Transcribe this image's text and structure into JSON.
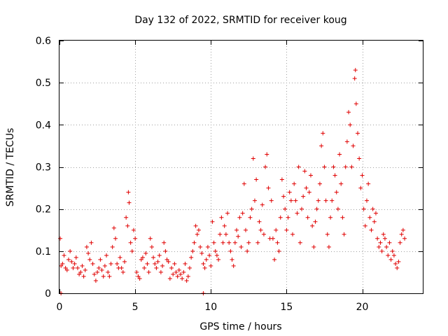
{
  "chart_data": {
    "type": "scatter",
    "title": "Day 132 of 2022, SRMTID for receiver koug",
    "xlabel": "GPS time / hours",
    "ylabel": "SRMTID / TECUs",
    "xlim": [
      0,
      24
    ],
    "ylim": [
      0,
      0.6
    ],
    "xticks": [
      0,
      5,
      10,
      15,
      20
    ],
    "yticks": [
      0,
      0.1,
      0.2,
      0.3,
      0.4,
      0.5,
      0.6
    ],
    "xtick_labels": [
      "0",
      "5",
      "10",
      "15",
      "20"
    ],
    "ytick_labels": [
      "0",
      "0.1",
      "0.2",
      "0.3",
      "0.4",
      "0.5",
      "0.6"
    ],
    "grid": true,
    "marker": "+",
    "color": "#e00000",
    "series": [
      {
        "name": "SRMTID",
        "points": [
          [
            0.05,
            0.13
          ],
          [
            0.1,
            0.065
          ],
          [
            0.2,
            0.07
          ],
          [
            0.3,
            0.09
          ],
          [
            0.4,
            0.06
          ],
          [
            0.5,
            0.055
          ],
          [
            0.6,
            0.08
          ],
          [
            0.7,
            0.1
          ],
          [
            0.8,
            0.075
          ],
          [
            0.9,
            0.06
          ],
          [
            1.0,
            0.07
          ],
          [
            1.1,
            0.085
          ],
          [
            1.2,
            0.06
          ],
          [
            1.3,
            0.045
          ],
          [
            1.4,
            0.05
          ],
          [
            1.5,
            0.065
          ],
          [
            1.6,
            0.04
          ],
          [
            1.7,
            0.055
          ],
          [
            1.8,
            0.11
          ],
          [
            1.9,
            0.095
          ],
          [
            2.0,
            0.08
          ],
          [
            2.1,
            0.12
          ],
          [
            2.2,
            0.07
          ],
          [
            2.3,
            0.045
          ],
          [
            2.4,
            0.03
          ],
          [
            2.5,
            0.05
          ],
          [
            2.6,
            0.06
          ],
          [
            2.7,
            0.08
          ],
          [
            2.8,
            0.055
          ],
          [
            2.9,
            0.04
          ],
          [
            3.0,
            0.065
          ],
          [
            3.1,
            0.09
          ],
          [
            3.2,
            0.05
          ],
          [
            3.3,
            0.04
          ],
          [
            3.4,
            0.07
          ],
          [
            3.5,
            0.11
          ],
          [
            3.6,
            0.155
          ],
          [
            3.7,
            0.13
          ],
          [
            3.8,
            0.07
          ],
          [
            3.9,
            0.06
          ],
          [
            4.0,
            0.085
          ],
          [
            4.1,
            0.06
          ],
          [
            4.2,
            0.05
          ],
          [
            4.3,
            0.075
          ],
          [
            4.4,
            0.18
          ],
          [
            4.5,
            0.16
          ],
          [
            4.55,
            0.24
          ],
          [
            4.6,
            0.215
          ],
          [
            4.7,
            0.12
          ],
          [
            4.8,
            0.1
          ],
          [
            4.9,
            0.15
          ],
          [
            5.0,
            0.13
          ],
          [
            5.1,
            0.05
          ],
          [
            5.2,
            0.04
          ],
          [
            5.3,
            0.035
          ],
          [
            5.4,
            0.08
          ],
          [
            5.5,
            0.085
          ],
          [
            5.6,
            0.06
          ],
          [
            5.7,
            0.095
          ],
          [
            5.8,
            0.07
          ],
          [
            5.9,
            0.05
          ],
          [
            6.0,
            0.13
          ],
          [
            6.1,
            0.11
          ],
          [
            6.2,
            0.085
          ],
          [
            6.3,
            0.07
          ],
          [
            6.4,
            0.06
          ],
          [
            6.5,
            0.075
          ],
          [
            6.6,
            0.09
          ],
          [
            6.7,
            0.05
          ],
          [
            6.8,
            0.065
          ],
          [
            6.9,
            0.12
          ],
          [
            7.0,
            0.1
          ],
          [
            7.1,
            0.08
          ],
          [
            7.2,
            0.075
          ],
          [
            7.3,
            0.035
          ],
          [
            7.4,
            0.06
          ],
          [
            7.5,
            0.045
          ],
          [
            7.6,
            0.07
          ],
          [
            7.7,
            0.05
          ],
          [
            7.8,
            0.04
          ],
          [
            7.9,
            0.055
          ],
          [
            8.0,
            0.045
          ],
          [
            8.1,
            0.035
          ],
          [
            8.2,
            0.05
          ],
          [
            8.3,
            0.07
          ],
          [
            8.4,
            0.03
          ],
          [
            8.5,
            0.04
          ],
          [
            8.6,
            0.06
          ],
          [
            8.7,
            0.085
          ],
          [
            8.8,
            0.1
          ],
          [
            8.9,
            0.12
          ],
          [
            9.0,
            0.16
          ],
          [
            9.1,
            0.14
          ],
          [
            9.2,
            0.15
          ],
          [
            9.3,
            0.11
          ],
          [
            9.4,
            0.095
          ],
          [
            9.5,
            0.07
          ],
          [
            9.6,
            0.06
          ],
          [
            9.7,
            0.08
          ],
          [
            9.8,
            0.11
          ],
          [
            9.9,
            0.09
          ],
          [
            10.0,
            0.065
          ],
          [
            10.1,
            0.17
          ],
          [
            10.2,
            0.12
          ],
          [
            10.3,
            0.1
          ],
          [
            10.4,
            0.09
          ],
          [
            10.5,
            0.08
          ],
          [
            10.6,
            0.14
          ],
          [
            10.7,
            0.18
          ],
          [
            10.8,
            0.12
          ],
          [
            10.9,
            0.16
          ],
          [
            11.0,
            0.14
          ],
          [
            11.1,
            0.19
          ],
          [
            11.2,
            0.12
          ],
          [
            11.3,
            0.1
          ],
          [
            11.4,
            0.08
          ],
          [
            11.5,
            0.065
          ],
          [
            11.6,
            0.12
          ],
          [
            11.7,
            0.15
          ],
          [
            11.8,
            0.135
          ],
          [
            11.9,
            0.18
          ],
          [
            12.0,
            0.11
          ],
          [
            12.1,
            0.19
          ],
          [
            12.2,
            0.26
          ],
          [
            12.3,
            0.15
          ],
          [
            12.4,
            0.1
          ],
          [
            12.5,
            0.12
          ],
          [
            12.6,
            0.18
          ],
          [
            12.7,
            0.2
          ],
          [
            12.8,
            0.32
          ],
          [
            12.9,
            0.22
          ],
          [
            13.0,
            0.27
          ],
          [
            13.1,
            0.12
          ],
          [
            13.2,
            0.17
          ],
          [
            13.3,
            0.15
          ],
          [
            13.4,
            0.21
          ],
          [
            13.5,
            0.14
          ],
          [
            13.6,
            0.3
          ],
          [
            13.7,
            0.33
          ],
          [
            13.8,
            0.25
          ],
          [
            13.9,
            0.13
          ],
          [
            14.0,
            0.22
          ],
          [
            14.1,
            0.13
          ],
          [
            14.2,
            0.08
          ],
          [
            14.3,
            0.15
          ],
          [
            14.4,
            0.12
          ],
          [
            14.5,
            0.1
          ],
          [
            14.6,
            0.18
          ],
          [
            14.7,
            0.27
          ],
          [
            14.8,
            0.23
          ],
          [
            14.9,
            0.2
          ],
          [
            15.0,
            0.15
          ],
          [
            15.1,
            0.18
          ],
          [
            15.2,
            0.24
          ],
          [
            15.3,
            0.22
          ],
          [
            15.4,
            0.14
          ],
          [
            15.5,
            0.26
          ],
          [
            15.6,
            0.22
          ],
          [
            15.7,
            0.19
          ],
          [
            15.8,
            0.3
          ],
          [
            15.9,
            0.12
          ],
          [
            16.0,
            0.2
          ],
          [
            16.1,
            0.23
          ],
          [
            16.2,
            0.29
          ],
          [
            16.3,
            0.25
          ],
          [
            16.4,
            0.18
          ],
          [
            16.5,
            0.24
          ],
          [
            16.6,
            0.28
          ],
          [
            16.7,
            0.16
          ],
          [
            16.8,
            0.11
          ],
          [
            16.9,
            0.17
          ],
          [
            17.0,
            0.2
          ],
          [
            17.1,
            0.22
          ],
          [
            17.2,
            0.26
          ],
          [
            17.3,
            0.35
          ],
          [
            17.4,
            0.38
          ],
          [
            17.5,
            0.3
          ],
          [
            17.6,
            0.22
          ],
          [
            17.7,
            0.14
          ],
          [
            17.8,
            0.11
          ],
          [
            17.9,
            0.18
          ],
          [
            18.0,
            0.22
          ],
          [
            18.1,
            0.3
          ],
          [
            18.2,
            0.28
          ],
          [
            18.3,
            0.24
          ],
          [
            18.4,
            0.2
          ],
          [
            18.5,
            0.33
          ],
          [
            18.6,
            0.26
          ],
          [
            18.7,
            0.18
          ],
          [
            18.8,
            0.14
          ],
          [
            18.9,
            0.3
          ],
          [
            19.0,
            0.36
          ],
          [
            19.1,
            0.43
          ],
          [
            19.2,
            0.4
          ],
          [
            19.3,
            0.3
          ],
          [
            19.4,
            0.35
          ],
          [
            19.5,
            0.51
          ],
          [
            19.55,
            0.53
          ],
          [
            19.6,
            0.45
          ],
          [
            19.7,
            0.38
          ],
          [
            19.8,
            0.32
          ],
          [
            19.9,
            0.25
          ],
          [
            20.0,
            0.28
          ],
          [
            20.1,
            0.2
          ],
          [
            20.2,
            0.16
          ],
          [
            20.3,
            0.22
          ],
          [
            20.4,
            0.26
          ],
          [
            20.5,
            0.18
          ],
          [
            20.6,
            0.15
          ],
          [
            20.7,
            0.2
          ],
          [
            20.8,
            0.17
          ],
          [
            20.9,
            0.19
          ],
          [
            21.0,
            0.13
          ],
          [
            21.1,
            0.11
          ],
          [
            21.2,
            0.12
          ],
          [
            21.3,
            0.1
          ],
          [
            21.4,
            0.14
          ],
          [
            21.5,
            0.13
          ],
          [
            21.6,
            0.11
          ],
          [
            21.7,
            0.09
          ],
          [
            21.8,
            0.12
          ],
          [
            21.9,
            0.08
          ],
          [
            22.0,
            0.1
          ],
          [
            22.1,
            0.09
          ],
          [
            22.2,
            0.07
          ],
          [
            22.3,
            0.06
          ],
          [
            22.4,
            0.075
          ],
          [
            22.5,
            0.12
          ],
          [
            22.6,
            0.14
          ],
          [
            22.7,
            0.15
          ],
          [
            22.8,
            0.13
          ],
          [
            0.1,
            0.0
          ],
          [
            9.5,
            0.0
          ]
        ]
      }
    ]
  }
}
